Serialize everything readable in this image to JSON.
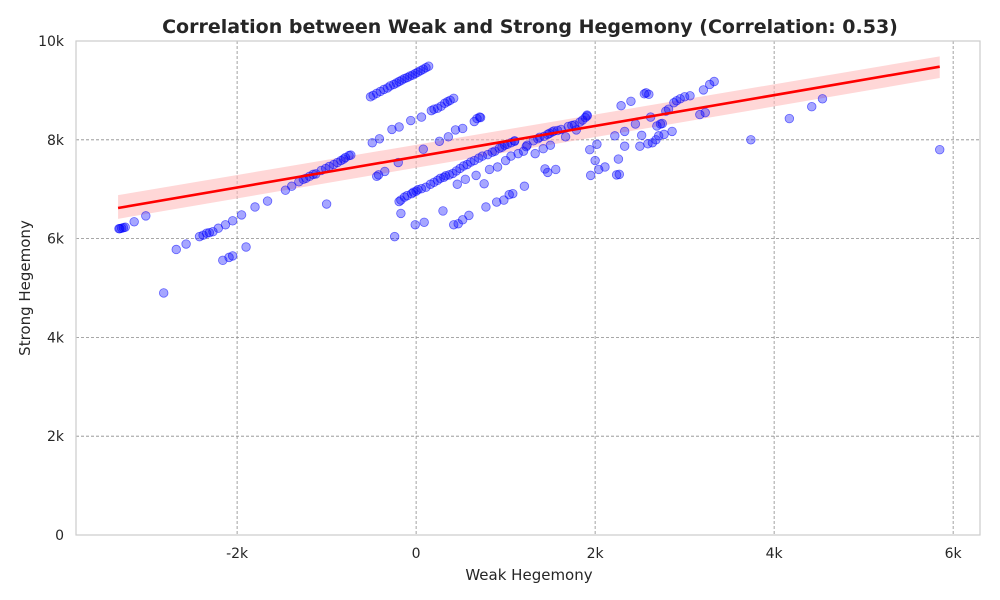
{
  "chart_data": {
    "type": "scatter",
    "title": "Correlation between Weak and Strong Hegemony (Correlation: 0.53)",
    "xlabel": "Weak Hegemony",
    "ylabel": "Strong Hegemony",
    "xlim": [
      -3800,
      6300
    ],
    "ylim": [
      0,
      10000
    ],
    "xticks": [
      {
        "value": -2000,
        "label": "-2k"
      },
      {
        "value": 0,
        "label": "0"
      },
      {
        "value": 2000,
        "label": "2k"
      },
      {
        "value": 4000,
        "label": "4k"
      },
      {
        "value": 6000,
        "label": "6k"
      }
    ],
    "yticks": [
      {
        "value": 0,
        "label": "0"
      },
      {
        "value": 2000,
        "label": "2k"
      },
      {
        "value": 4000,
        "label": "4k"
      },
      {
        "value": 6000,
        "label": "6k"
      },
      {
        "value": 8000,
        "label": "8k"
      },
      {
        "value": 10000,
        "label": "10k"
      }
    ],
    "grid": true,
    "colors": {
      "points": "#0000ff",
      "fit_line": "#ff0000",
      "confidence_band": "#ffb6b6",
      "grid": "#8c8c8c",
      "frame": "#cccccc",
      "text": "#262626"
    },
    "fit_line": {
      "x": [
        -3330,
        5850
      ],
      "y": [
        6620,
        9480
      ],
      "band_lower": [
        6400,
        9250
      ],
      "band_upper": [
        6880,
        9690
      ]
    },
    "points": [
      [
        -3320,
        6200
      ],
      [
        -3310,
        6200
      ],
      [
        -3290,
        6210
      ],
      [
        -3270,
        6220
      ],
      [
        -3250,
        6230
      ],
      [
        -3150,
        6340
      ],
      [
        -3020,
        6460
      ],
      [
        -2820,
        4900
      ],
      [
        -2680,
        5780
      ],
      [
        -2570,
        5890
      ],
      [
        -2420,
        6040
      ],
      [
        -2380,
        6070
      ],
      [
        -2340,
        6110
      ],
      [
        -2310,
        6120
      ],
      [
        -2270,
        6140
      ],
      [
        -2210,
        6210
      ],
      [
        -2160,
        5560
      ],
      [
        -2130,
        6280
      ],
      [
        -2090,
        5620
      ],
      [
        -2050,
        5650
      ],
      [
        -2050,
        6360
      ],
      [
        -1950,
        6480
      ],
      [
        -1900,
        5830
      ],
      [
        -1800,
        6640
      ],
      [
        -1660,
        6760
      ],
      [
        -1460,
        6980
      ],
      [
        -1390,
        7060
      ],
      [
        -1310,
        7150
      ],
      [
        -1260,
        7200
      ],
      [
        -1230,
        7220
      ],
      [
        -1190,
        7260
      ],
      [
        -1150,
        7300
      ],
      [
        -1120,
        7310
      ],
      [
        -1060,
        7380
      ],
      [
        -1000,
        6700
      ],
      [
        -1010,
        7420
      ],
      [
        -970,
        7460
      ],
      [
        -920,
        7500
      ],
      [
        -880,
        7540
      ],
      [
        -840,
        7580
      ],
      [
        -810,
        7610
      ],
      [
        -790,
        7640
      ],
      [
        -750,
        7680
      ],
      [
        -730,
        7690
      ],
      [
        -510,
        8870
      ],
      [
        -480,
        8900
      ],
      [
        -440,
        8940
      ],
      [
        -400,
        8980
      ],
      [
        -360,
        9020
      ],
      [
        -320,
        9050
      ],
      [
        -290,
        9090
      ],
      [
        -250,
        9120
      ],
      [
        -220,
        9150
      ],
      [
        -190,
        9180
      ],
      [
        -160,
        9210
      ],
      [
        -130,
        9240
      ],
      [
        -100,
        9260
      ],
      [
        -70,
        9290
      ],
      [
        -40,
        9310
      ],
      [
        -10,
        9340
      ],
      [
        20,
        9370
      ],
      [
        50,
        9400
      ],
      [
        80,
        9430
      ],
      [
        110,
        9460
      ],
      [
        140,
        9490
      ],
      [
        -490,
        7940
      ],
      [
        -440,
        7260
      ],
      [
        -420,
        7290
      ],
      [
        -410,
        8020
      ],
      [
        -350,
        7360
      ],
      [
        -270,
        8210
      ],
      [
        -240,
        6040
      ],
      [
        -190,
        8260
      ],
      [
        -200,
        7540
      ],
      [
        -190,
        6750
      ],
      [
        -170,
        6780
      ],
      [
        -170,
        6510
      ],
      [
        -130,
        6840
      ],
      [
        -100,
        6870
      ],
      [
        -60,
        8390
      ],
      [
        -50,
        6910
      ],
      [
        -30,
        6940
      ],
      [
        -10,
        6280
      ],
      [
        0,
        6960
      ],
      [
        20,
        6990
      ],
      [
        60,
        7010
      ],
      [
        60,
        8460
      ],
      [
        80,
        7810
      ],
      [
        90,
        6330
      ],
      [
        110,
        7040
      ],
      [
        160,
        7100
      ],
      [
        170,
        8590
      ],
      [
        200,
        8620
      ],
      [
        200,
        7140
      ],
      [
        240,
        7180
      ],
      [
        240,
        8640
      ],
      [
        260,
        7970
      ],
      [
        270,
        7220
      ],
      [
        280,
        8680
      ],
      [
        300,
        6560
      ],
      [
        310,
        7240
      ],
      [
        320,
        8740
      ],
      [
        330,
        7270
      ],
      [
        350,
        8770
      ],
      [
        360,
        8060
      ],
      [
        370,
        7290
      ],
      [
        380,
        8800
      ],
      [
        410,
        7320
      ],
      [
        420,
        6280
      ],
      [
        420,
        8840
      ],
      [
        440,
        8200
      ],
      [
        450,
        7370
      ],
      [
        460,
        7100
      ],
      [
        470,
        6300
      ],
      [
        490,
        7420
      ],
      [
        520,
        8230
      ],
      [
        520,
        6380
      ],
      [
        530,
        7470
      ],
      [
        550,
        7200
      ],
      [
        570,
        7500
      ],
      [
        590,
        6470
      ],
      [
        610,
        7550
      ],
      [
        650,
        7580
      ],
      [
        650,
        8370
      ],
      [
        670,
        7280
      ],
      [
        680,
        8430
      ],
      [
        700,
        7630
      ],
      [
        710,
        8460
      ],
      [
        720,
        8450
      ],
      [
        740,
        7670
      ],
      [
        760,
        7110
      ],
      [
        780,
        6640
      ],
      [
        800,
        7700
      ],
      [
        820,
        7400
      ],
      [
        850,
        7750
      ],
      [
        880,
        7770
      ],
      [
        900,
        6740
      ],
      [
        910,
        7450
      ],
      [
        930,
        7830
      ],
      [
        960,
        7850
      ],
      [
        980,
        6780
      ],
      [
        990,
        7890
      ],
      [
        1000,
        7580
      ],
      [
        1020,
        7910
      ],
      [
        1040,
        6890
      ],
      [
        1060,
        7940
      ],
      [
        1060,
        7670
      ],
      [
        1080,
        6910
      ],
      [
        1100,
        7980
      ],
      [
        1100,
        7970
      ],
      [
        1140,
        7720
      ],
      [
        1200,
        7770
      ],
      [
        1210,
        7060
      ],
      [
        1230,
        7860
      ],
      [
        1240,
        7890
      ],
      [
        1310,
        7980
      ],
      [
        1330,
        7720
      ],
      [
        1360,
        8020
      ],
      [
        1380,
        8050
      ],
      [
        1420,
        7820
      ],
      [
        1430,
        8070
      ],
      [
        1440,
        7410
      ],
      [
        1470,
        8110
      ],
      [
        1470,
        7340
      ],
      [
        1490,
        8130
      ],
      [
        1500,
        7890
      ],
      [
        1520,
        8160
      ],
      [
        1540,
        8180
      ],
      [
        1560,
        7400
      ],
      [
        1580,
        8190
      ],
      [
        1620,
        8210
      ],
      [
        1670,
        8060
      ],
      [
        1700,
        8270
      ],
      [
        1740,
        8290
      ],
      [
        1770,
        8300
      ],
      [
        1790,
        8200
      ],
      [
        1830,
        8360
      ],
      [
        1860,
        8400
      ],
      [
        1890,
        8450
      ],
      [
        1910,
        8480
      ],
      [
        1910,
        8500
      ],
      [
        1940,
        7800
      ],
      [
        1950,
        7280
      ],
      [
        2000,
        7580
      ],
      [
        2020,
        7910
      ],
      [
        2040,
        7400
      ],
      [
        2110,
        7450
      ],
      [
        2220,
        8080
      ],
      [
        2240,
        7290
      ],
      [
        2260,
        7610
      ],
      [
        2270,
        7300
      ],
      [
        2290,
        8690
      ],
      [
        2330,
        8170
      ],
      [
        2330,
        7870
      ],
      [
        2400,
        8780
      ],
      [
        2450,
        8320
      ],
      [
        2500,
        7870
      ],
      [
        2520,
        8090
      ],
      [
        2550,
        8930
      ],
      [
        2570,
        8950
      ],
      [
        2590,
        7920
      ],
      [
        2600,
        8920
      ],
      [
        2620,
        8460
      ],
      [
        2640,
        7940
      ],
      [
        2680,
        8000
      ],
      [
        2690,
        8280
      ],
      [
        2710,
        8080
      ],
      [
        2730,
        8320
      ],
      [
        2750,
        8330
      ],
      [
        2770,
        8110
      ],
      [
        2790,
        8580
      ],
      [
        2820,
        8620
      ],
      [
        2860,
        8170
      ],
      [
        2880,
        8750
      ],
      [
        2910,
        8790
      ],
      [
        2950,
        8830
      ],
      [
        3000,
        8870
      ],
      [
        3060,
        8890
      ],
      [
        3170,
        8510
      ],
      [
        3210,
        9010
      ],
      [
        3230,
        8550
      ],
      [
        3280,
        9120
      ],
      [
        3330,
        9180
      ],
      [
        3740,
        8000
      ],
      [
        4170,
        8430
      ],
      [
        4420,
        8670
      ],
      [
        4540,
        8830
      ],
      [
        5850,
        7800
      ]
    ]
  }
}
